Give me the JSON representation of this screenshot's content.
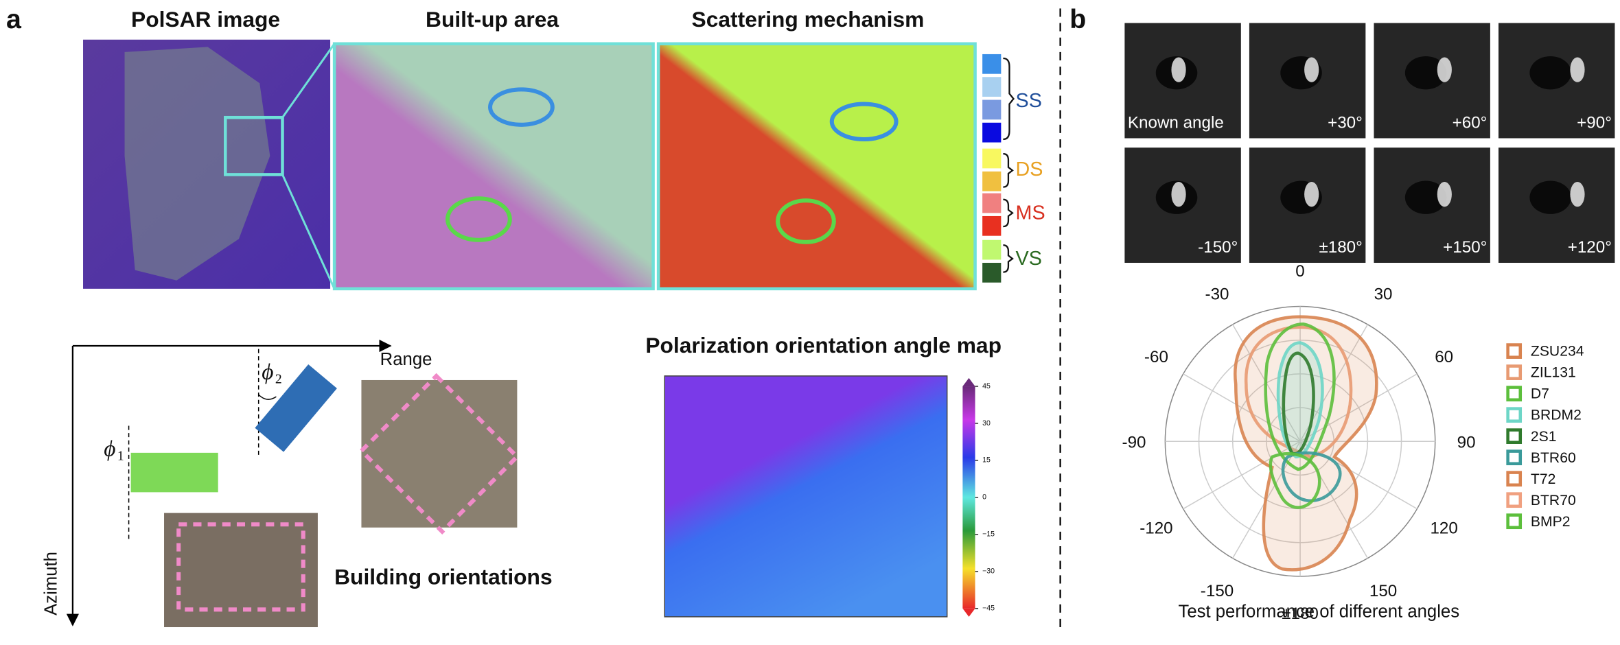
{
  "panel_a": {
    "label": "a",
    "titles": [
      "PolSAR image",
      "Built-up area",
      "Scattering mechanism"
    ],
    "mechanisms": [
      "SS",
      "DS",
      "MS",
      "VS"
    ],
    "range": "Range",
    "azimuth": "Azimuth",
    "phi1": {
      "symbol": "ϕ",
      "sub": "1"
    },
    "phi2": {
      "symbol": "ϕ",
      "sub": "2"
    },
    "building_orientations": "Building orientations",
    "poa_title": "Polarization orientation angle map",
    "colorbar_ticks": [
      "45",
      "30",
      "15",
      "0",
      "−15",
      "−30",
      "−45"
    ]
  },
  "panel_b": {
    "label": "b",
    "sar_labels": [
      [
        "Known angle",
        "+30°",
        "+60°",
        "+90°"
      ],
      [
        "-150°",
        "±180°",
        "+150°",
        "+120°"
      ]
    ],
    "polar_angles": [
      "0",
      "30",
      "60",
      "90",
      "120",
      "150",
      "±180",
      "-150",
      "-120",
      "-90",
      "-60",
      "-30"
    ],
    "legend": [
      "ZSU234",
      "ZIL131",
      "D7",
      "BRDM2",
      "2S1",
      "BTR60",
      "T72",
      "BTR70",
      "BMP2"
    ],
    "caption": "Test performance of different angles"
  }
}
